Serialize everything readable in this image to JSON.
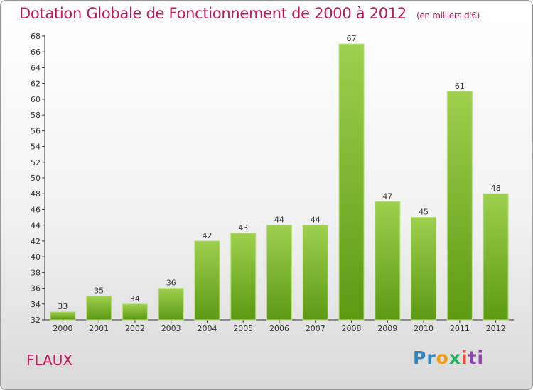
{
  "header": {
    "title": "Dotation Globale de Fonctionnement de 2000 à 2012",
    "unit": "(en milliers d'€)"
  },
  "footer": {
    "commune": "FLAUX",
    "brand": [
      "P",
      "r",
      "o",
      "x",
      "i",
      "ti"
    ]
  },
  "chart_data": {
    "type": "bar",
    "categories": [
      "2000",
      "2001",
      "2002",
      "2003",
      "2004",
      "2005",
      "2006",
      "2007",
      "2008",
      "2009",
      "2010",
      "2011",
      "2012"
    ],
    "values": [
      33,
      35,
      34,
      36,
      42,
      43,
      44,
      44,
      67,
      47,
      45,
      61,
      48
    ],
    "title": "Dotation Globale de Fonctionnement de 2000 à 2012",
    "xlabel": "",
    "ylabel": "",
    "ylim": [
      32,
      68
    ],
    "yticks": [
      32,
      34,
      36,
      38,
      40,
      42,
      44,
      46,
      48,
      50,
      52,
      54,
      56,
      58,
      60,
      62,
      64,
      66,
      68
    ],
    "grid": false,
    "colors": {
      "bar_top": "#9ed04d",
      "bar_bottom": "#5c9a12",
      "title": "#c2185b"
    }
  }
}
